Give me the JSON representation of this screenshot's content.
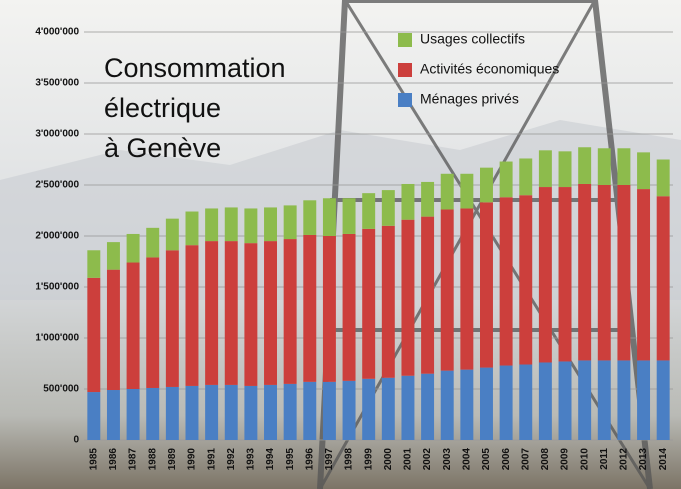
{
  "chart_data": {
    "type": "stacked-bar",
    "title": [
      "Consommation",
      "électrique",
      "à Genève"
    ],
    "categories": [
      "1985",
      "1986",
      "1987",
      "1988",
      "1989",
      "1990",
      "1991",
      "1992",
      "1993",
      "1994",
      "1995",
      "1996",
      "1997",
      "1998",
      "1999",
      "2000",
      "2001",
      "2002",
      "2003",
      "2004",
      "2005",
      "2006",
      "2007",
      "2008",
      "2009",
      "2010",
      "2011",
      "2012",
      "2013",
      "2014"
    ],
    "series": [
      {
        "name": "Ménages privés",
        "color": "#4a7fc4",
        "values": [
          470000,
          490000,
          500000,
          510000,
          520000,
          530000,
          540000,
          540000,
          530000,
          540000,
          550000,
          570000,
          570000,
          580000,
          600000,
          610000,
          630000,
          650000,
          680000,
          690000,
          710000,
          730000,
          740000,
          760000,
          770000,
          780000,
          780000,
          780000,
          780000,
          780000
        ]
      },
      {
        "name": "Activités économiques",
        "color": "#cc3f3c",
        "values": [
          1120000,
          1180000,
          1240000,
          1280000,
          1340000,
          1380000,
          1410000,
          1410000,
          1400000,
          1410000,
          1420000,
          1440000,
          1430000,
          1440000,
          1470000,
          1490000,
          1530000,
          1540000,
          1580000,
          1580000,
          1620000,
          1650000,
          1660000,
          1720000,
          1710000,
          1730000,
          1720000,
          1720000,
          1680000,
          1610000
        ]
      },
      {
        "name": "Usages collectifs",
        "color": "#8dbb4c",
        "values": [
          270000,
          270000,
          280000,
          290000,
          310000,
          330000,
          320000,
          330000,
          340000,
          330000,
          330000,
          340000,
          370000,
          350000,
          350000,
          350000,
          350000,
          340000,
          350000,
          340000,
          340000,
          350000,
          360000,
          360000,
          350000,
          360000,
          360000,
          360000,
          360000,
          360000
        ]
      }
    ],
    "ylim": [
      0,
      4000000
    ],
    "yticks": [
      0,
      {
        "value": 500000,
        "label": "500'000"
      },
      {
        "value": 1000000,
        "label": "1'000'000"
      },
      {
        "value": 1500000,
        "label": "1'500'000"
      },
      {
        "value": 2000000,
        "label": "2'000'000"
      },
      {
        "value": 2500000,
        "label": "2'500'000"
      },
      {
        "value": 3000000,
        "label": "3'000'000"
      },
      {
        "value": 3500000,
        "label": "3'500'000"
      },
      {
        "value": 4000000,
        "label": "4'000'000"
      }
    ],
    "grid": true,
    "legend": "top-right"
  }
}
